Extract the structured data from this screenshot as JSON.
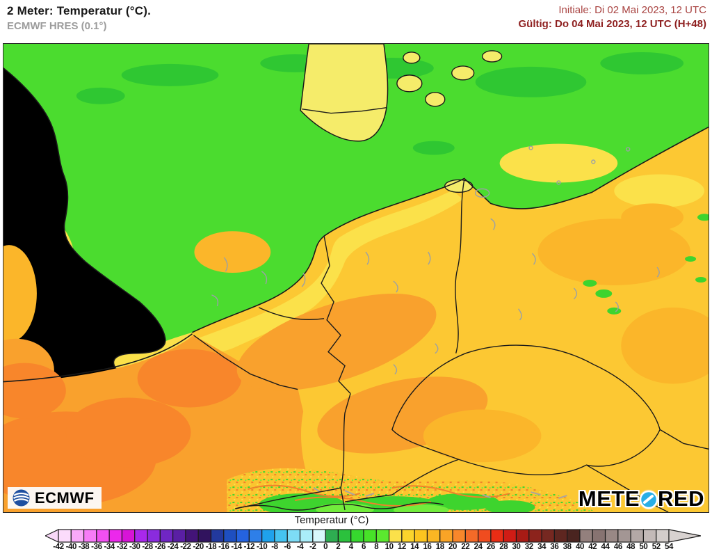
{
  "header": {
    "title": "2 Meter: Temperatur (°C).",
    "subtitle": "ECMWF HRES (0.1°)",
    "init_label": "Initiale: Di 02 Mai 2023, 12 UTC",
    "valid_label": "Gültig: Do 04 Mai 2023, 12 UTC (H+48)",
    "init_color": "#A94442",
    "valid_color": "#8E1F1F"
  },
  "logos": {
    "ecmwf": "ECMWF",
    "ecmwf_color": "#1E4FA0",
    "meteored_left": "METE",
    "meteored_right": "RED",
    "meteored_color": "#29AEE6"
  },
  "legend": {
    "title": "Temperatur (°C)",
    "ticks": [
      -42,
      -40,
      -38,
      -36,
      -34,
      -32,
      -30,
      -28,
      -26,
      -24,
      -22,
      -20,
      -18,
      -16,
      -14,
      -12,
      -10,
      -8,
      -6,
      -4,
      -2,
      0,
      2,
      4,
      6,
      8,
      10,
      12,
      14,
      16,
      18,
      20,
      22,
      24,
      26,
      28,
      30,
      32,
      34,
      36,
      38,
      40,
      42,
      44,
      46,
      48,
      50,
      52,
      54
    ],
    "colors": [
      "#FBDCFB",
      "#F9A9F9",
      "#F77CF7",
      "#F250F2",
      "#EC28EC",
      "#D714D7",
      "#A928EC",
      "#8A2BDE",
      "#7026C4",
      "#5A1FA4",
      "#431478",
      "#31135E",
      "#22399E",
      "#1E4FC0",
      "#2563E0",
      "#2E7FE8",
      "#1FA2EC",
      "#45C3F0",
      "#7DDCF6",
      "#AAEDF9",
      "#D8F8FC",
      "#2EAD51",
      "#2BC13D",
      "#36D72E",
      "#47E228",
      "#5BE82F",
      "#FBE14A",
      "#FBD42C",
      "#FCC41F",
      "#FAB623",
      "#F9A426",
      "#F8872B",
      "#F46A28",
      "#F04C1F",
      "#E92D15",
      "#D01C15",
      "#A81B15",
      "#8C231C",
      "#762821",
      "#5E2620",
      "#4A2420",
      "#93807D",
      "#877371",
      "#998885",
      "#A39694",
      "#B3A8A6",
      "#C3BAB8",
      "#D3CDCB"
    ],
    "arrow_left": "#F8D8F8",
    "arrow_right": "#D8D2D0",
    "outline": "#1A1A1A"
  },
  "map": {
    "colors": {
      "land": "#FCC833",
      "sea_green": "#4BDC2F",
      "sea_green_dark": "#2FC732",
      "sea_yellow": "#FBE14A",
      "coast_band": "#FBE14A",
      "pale_land": "#F5EC6A",
      "england": "#FBD93F",
      "orange_light": "#FBB62A",
      "orange": "#F9A12D",
      "orange_deep": "#F8862B",
      "alps_base": "#FBC52F",
      "alps_green": "#3ED42E",
      "alps_green_bright": "#72EC3C",
      "alps_orange": "#F0812A",
      "glacier_gray": "#ABA39F",
      "river_gray": "#9AA0A6",
      "border": "#1A1A1A"
    }
  }
}
